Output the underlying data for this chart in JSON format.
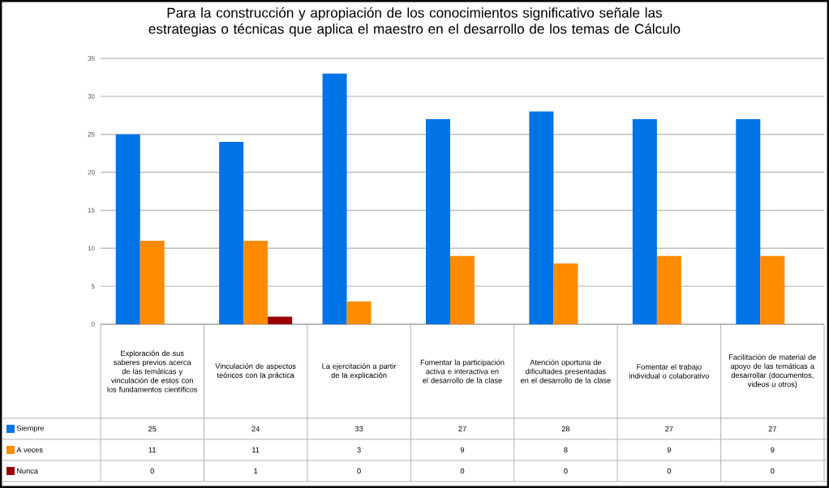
{
  "chart_data": {
    "type": "bar",
    "title": "Para la construcción y apropiación de los conocimientos significativo señale las estrategias o técnicas que aplica el maestro en el desarrollo de los temas de Cálculo",
    "categories": [
      "Exploración de sus saberes previos acerca de las temáticas y vinculación de estos con los fundamentos científicos",
      "Vinculación de aspectos teóricos con la práctica",
      "La ejercitación a partir de la explicación",
      "Fomentar la participación activa e interactiva en el desarrollo de la clase",
      "Atención oportuna de dificultades presentadas en el desarrollo de la clase",
      "Fomentar el trabajo individual o colaborativo",
      "Facilitación de material de apoyo de las temáticas a desarrollar (documentos, videos u otros)"
    ],
    "series": [
      {
        "name": "Siempre",
        "color": "#0073e6",
        "values": [
          25,
          24,
          33,
          27,
          28,
          27,
          27
        ]
      },
      {
        "name": "A veces",
        "color": "#ff8c00",
        "values": [
          11,
          11,
          3,
          9,
          8,
          9,
          9
        ]
      },
      {
        "name": "Nunca",
        "color": "#990000",
        "values": [
          0,
          1,
          0,
          0,
          0,
          0,
          0
        ]
      }
    ],
    "ylim": [
      0,
      35
    ],
    "yticks": [
      0,
      5,
      10,
      15,
      20,
      25,
      30,
      35
    ],
    "grid": "y",
    "legend": "bottom left",
    "data_labels": true
  }
}
